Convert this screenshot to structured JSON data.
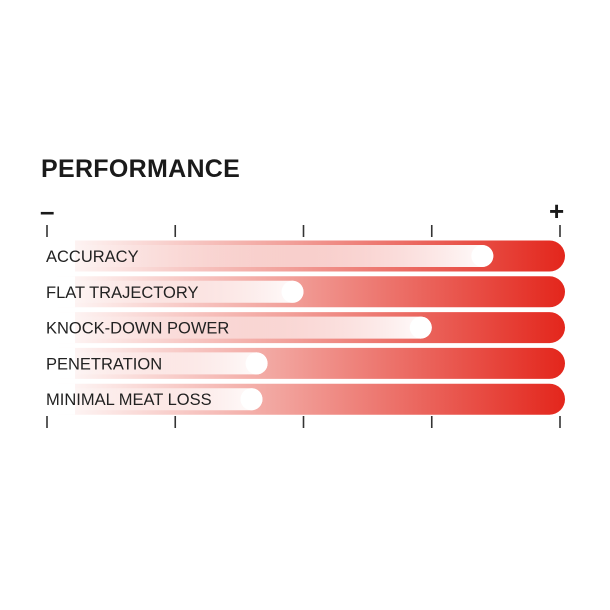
{
  "chart_data": {
    "type": "bar",
    "orientation": "horizontal",
    "title": "PERFORMANCE",
    "scale_min_label": "–",
    "scale_max_label": "+",
    "xlim": [
      0,
      1
    ],
    "ticks": [
      0,
      0.25,
      0.5,
      0.75,
      1
    ],
    "categories": [
      "ACCURACY",
      "FLAT TRAJECTORY",
      "KNOCK-DOWN POWER",
      "PENETRATION",
      "MINIMAL MEAT LOSS"
    ],
    "values": [
      0.87,
      0.5,
      0.75,
      0.43,
      0.42
    ],
    "colors": {
      "bar_end": "#e3261c",
      "bar_start": "#ffffff",
      "marker": "#ffffff",
      "text": "#222222"
    }
  }
}
